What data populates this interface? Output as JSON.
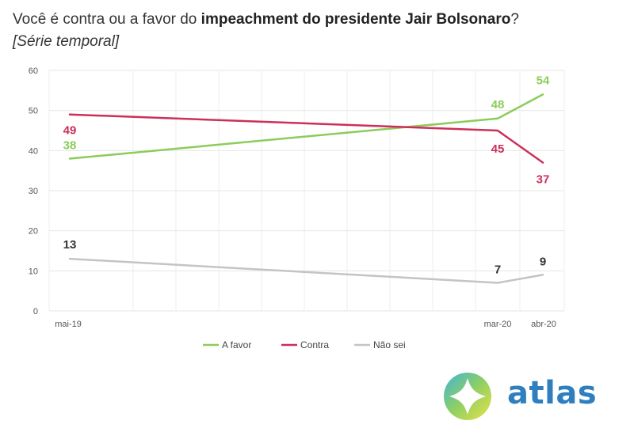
{
  "title_plain": "Você é contra ou a favor do ",
  "title_bold": "impeachment do presidente Jair Bolsonaro",
  "title_end": "?",
  "subtitle": "[Série temporal]",
  "brand": {
    "name": "atlas",
    "color": "#2f7fc0"
  },
  "chart_data": {
    "type": "line",
    "categories": [
      "mai-19",
      "mar-20",
      "abr-20"
    ],
    "x_positions_note": "",
    "ylim": [
      0,
      60
    ],
    "yticks": [
      0,
      10,
      20,
      30,
      40,
      50,
      60
    ],
    "grid": true,
    "legend": "bottom",
    "series": [
      {
        "name": "A favor",
        "values": [
          38,
          48,
          54
        ],
        "labels": [
          "38",
          "48",
          "54"
        ],
        "color": "#8ccc5a"
      },
      {
        "name": "Contra",
        "values": [
          49,
          45,
          37
        ],
        "labels": [
          "49",
          "45",
          "37"
        ],
        "color": "#cc2f5a"
      },
      {
        "name": "Não sei",
        "values": [
          13,
          7,
          9
        ],
        "labels": [
          "13",
          "7",
          "9"
        ],
        "color": "#c4c4c4"
      }
    ]
  }
}
